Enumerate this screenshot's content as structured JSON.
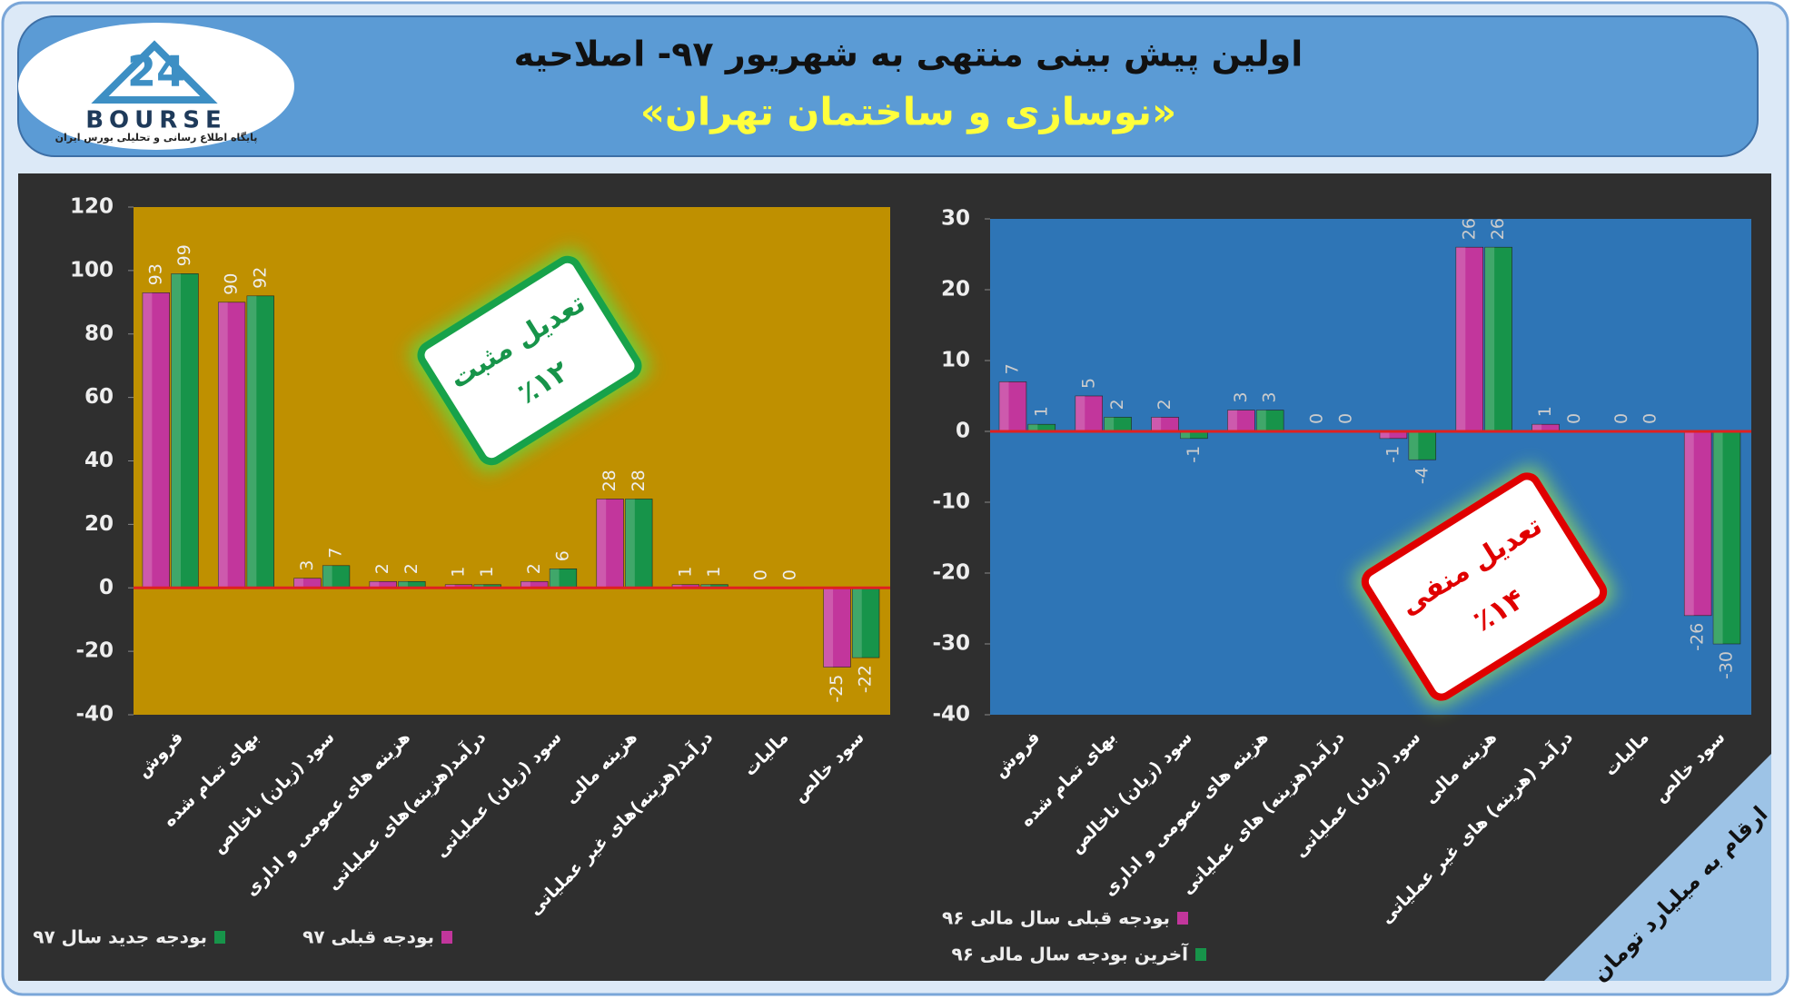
{
  "header": {
    "title": "اولین پیش بینی منتهی به شهریور ۹۷- اصلاحیه",
    "subtitle": "«نوسازی و ساختمان تهران»"
  },
  "logo": {
    "number": "24",
    "name": "BOURSE",
    "tagline": "پایگاه اطلاع رسانی و تحلیلی بورس ایران"
  },
  "units": "ارقام به میلیارد تومان",
  "chart_data": [
    {
      "type": "bar",
      "background": "#bf9000",
      "categories": [
        "فروش",
        "بهای تمام شده",
        "سود (زیان) ناخالص",
        "هزینه های عمومی و اداری",
        "درآمد(هزینه)های عملیاتی",
        "سود (زیان) عملیاتی",
        "هزینه مالی",
        "درآمد(هزینه)های غیر عملیاتی",
        "مالیات",
        "سود خالص"
      ],
      "series": [
        {
          "name": "بودجه قبلی ۹۷",
          "color": "#c2369c",
          "values": [
            93,
            90,
            3,
            2,
            1,
            2,
            28,
            1,
            0,
            -25
          ]
        },
        {
          "name": "بودجه جدید سال ۹۷",
          "color": "#17944a",
          "values": [
            99,
            92,
            7,
            2,
            1,
            6,
            28,
            1,
            0,
            -22
          ]
        }
      ],
      "ylim": [
        -40,
        120
      ],
      "yticks": [
        -40,
        -20,
        0,
        20,
        40,
        60,
        80,
        100,
        120
      ],
      "grid": false,
      "annotations": [
        "تعدیل مثبت",
        "٪۱۲"
      ]
    },
    {
      "type": "bar",
      "background": "#2e75b6",
      "categories": [
        "فروش",
        "بهای تمام شده",
        "سود (زیان) ناخالص",
        "هزینه های عمومی و اداری",
        "درآمد(هزینه) های عملیاتی",
        "سود (زیان) عملیاتی",
        "هزینه مالی",
        "درآمد (هزینه) های غیر عملیاتی",
        "مالیات",
        "سود خالص"
      ],
      "series": [
        {
          "name": "بودجه قبلی سال مالی ۹۶",
          "color": "#c2369c",
          "values": [
            7,
            5,
            2,
            3,
            0,
            -1,
            26,
            1,
            0,
            -26
          ]
        },
        {
          "name": "آخرین بودجه سال مالی ۹۶",
          "color": "#17944a",
          "values": [
            1,
            2,
            -1,
            3,
            0,
            -4,
            26,
            0,
            0,
            -30
          ]
        }
      ],
      "ylim": [
        -40,
        30
      ],
      "yticks": [
        -40,
        -30,
        -20,
        -10,
        0,
        10,
        20,
        30
      ],
      "grid": false,
      "annotations": [
        "تعدیل منفی",
        "٪۱۴"
      ]
    }
  ]
}
